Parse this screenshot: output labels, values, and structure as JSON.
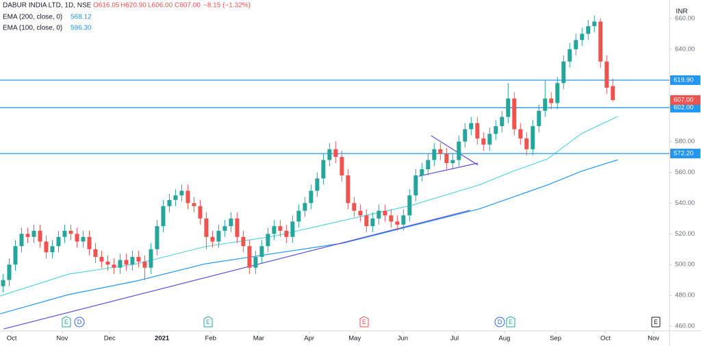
{
  "chart_data": {
    "type": "candlestick",
    "header": {
      "symbol": "DABUR INDIA LTD, 1D, NSE",
      "open": "O616.05",
      "high": "H620.90",
      "low": "L606.00",
      "close": "C607.00",
      "change": "−8.15 (−1.32%)"
    },
    "currency": "INR",
    "up_color": "#26a69a",
    "down_color": "#ef5350",
    "open": [
      486,
      490,
      500,
      512,
      520,
      518,
      522,
      515,
      508,
      512,
      518,
      522,
      520,
      515,
      518,
      510,
      505,
      502,
      500,
      498,
      503,
      500,
      505,
      502,
      498,
      510,
      525,
      538,
      542,
      545,
      548,
      540,
      538,
      530,
      518,
      515,
      522,
      525,
      530,
      518,
      512,
      498,
      505,
      512,
      520,
      525,
      522,
      518,
      528,
      535,
      540,
      548,
      556,
      568,
      575,
      570,
      558,
      540,
      535,
      532,
      525,
      530,
      535,
      532,
      528,
      526,
      532,
      545,
      558,
      562,
      568,
      575,
      572,
      566,
      568,
      580,
      588,
      592,
      582,
      578,
      585,
      590,
      596,
      608,
      588,
      582,
      575,
      590,
      600,
      608,
      605,
      618,
      632,
      640,
      646,
      650,
      655,
      658,
      632,
      616.05
    ],
    "high": [
      494,
      504,
      516,
      524,
      524,
      526,
      526,
      519,
      516,
      522,
      526,
      526,
      524,
      522,
      522,
      514,
      509,
      506,
      504,
      507,
      507,
      509,
      509,
      506,
      514,
      529,
      542,
      546,
      549,
      552,
      552,
      544,
      542,
      534,
      522,
      526,
      529,
      534,
      534,
      522,
      516,
      509,
      516,
      524,
      529,
      529,
      526,
      532,
      539,
      544,
      552,
      560,
      572,
      579,
      580,
      574,
      562,
      544,
      539,
      536,
      534,
      539,
      539,
      536,
      532,
      536,
      549,
      562,
      566,
      572,
      579,
      579,
      576,
      572,
      584,
      592,
      596,
      596,
      586,
      589,
      594,
      600,
      618,
      612,
      592,
      586,
      594,
      604,
      620,
      612,
      622,
      636,
      644,
      650,
      654,
      659,
      662,
      660,
      636,
      620.9
    ],
    "low": [
      482,
      486,
      496,
      508,
      514,
      514,
      511,
      504,
      504,
      508,
      514,
      516,
      511,
      511,
      506,
      501,
      498,
      496,
      494,
      494,
      496,
      496,
      498,
      490,
      494,
      506,
      521,
      534,
      538,
      541,
      536,
      534,
      526,
      510,
      511,
      511,
      518,
      521,
      514,
      508,
      494,
      494,
      501,
      508,
      516,
      518,
      514,
      514,
      524,
      531,
      536,
      544,
      552,
      564,
      566,
      554,
      536,
      531,
      528,
      521,
      521,
      526,
      528,
      524,
      522,
      522,
      528,
      541,
      554,
      558,
      564,
      568,
      562,
      562,
      564,
      576,
      584,
      578,
      574,
      574,
      581,
      586,
      592,
      584,
      578,
      571,
      571,
      586,
      596,
      601,
      601,
      614,
      628,
      636,
      642,
      646,
      651,
      628,
      611,
      606
    ],
    "close": [
      490,
      500,
      512,
      520,
      518,
      522,
      515,
      508,
      512,
      518,
      522,
      520,
      515,
      518,
      510,
      505,
      502,
      500,
      498,
      503,
      500,
      505,
      502,
      498,
      510,
      525,
      538,
      542,
      545,
      548,
      540,
      538,
      530,
      518,
      515,
      522,
      525,
      530,
      518,
      512,
      498,
      505,
      512,
      520,
      525,
      522,
      518,
      528,
      535,
      540,
      548,
      556,
      568,
      575,
      570,
      558,
      540,
      535,
      532,
      525,
      530,
      535,
      532,
      528,
      526,
      532,
      545,
      558,
      562,
      568,
      575,
      572,
      566,
      568,
      580,
      588,
      592,
      582,
      578,
      585,
      590,
      596,
      608,
      588,
      582,
      575,
      590,
      600,
      608,
      605,
      618,
      632,
      640,
      646,
      650,
      655,
      658,
      632,
      615,
      607
    ],
    "series": [
      {
        "name": "EMA (200, close, 0)",
        "value_label": "568.12",
        "color": "#2196f3",
        "x": [
          0,
          11.1,
          22.2,
          33.3,
          44.4,
          55.6,
          66.7,
          77.8,
          88.9,
          94.4,
          100.3
        ],
        "values": [
          468,
          480.5,
          489.4,
          500.5,
          507.2,
          513.9,
          525,
          536.2,
          551.8,
          560.7,
          568.12
        ]
      },
      {
        "name": "EMA (100, close, 0)",
        "value_label": "596.30",
        "color": "#5cd3e3",
        "x": [
          0,
          11.1,
          22.2,
          33.3,
          44.4,
          55.6,
          66.7,
          77.8,
          83.3,
          88.9,
          94.4,
          100.3
        ],
        "values": [
          479.6,
          493.8,
          500.5,
          511.7,
          518.4,
          528.6,
          538.4,
          551.8,
          560.7,
          568.7,
          585.2,
          596.3
        ]
      }
    ],
    "levels": [
      {
        "value": 619.9,
        "label": "619.90"
      },
      {
        "value": 602,
        "label": "602.00"
      },
      {
        "value": 572.2,
        "label": "572.20"
      }
    ],
    "last_price": {
      "value": 607,
      "label": "607.00"
    },
    "trendlines": [
      {
        "x": [
          0.6,
          76.3
        ],
        "values": [
          458.2,
          535.3
        ]
      },
      {
        "x": [
          70,
          77.6
        ],
        "values": [
          583.8,
          564.7
        ]
      },
      {
        "x": [
          68,
          77.6
        ],
        "values": [
          557.5,
          566
        ]
      }
    ],
    "trendline_color": "#5b4fd6",
    "level_color": "#2196f3",
    "xlim": [
      0,
      108.7
    ],
    "ylim": [
      456.9,
      672
    ],
    "yticks": [
      {
        "value": 660,
        "label": "660.00"
      },
      {
        "value": 640,
        "label": "640.00"
      },
      {
        "value": 580,
        "label": "580.00"
      },
      {
        "value": 560,
        "label": "560.00"
      },
      {
        "value": 540,
        "label": "540.00"
      },
      {
        "value": 520,
        "label": "520.00"
      },
      {
        "value": 500,
        "label": "500.00"
      },
      {
        "value": 480,
        "label": "480.00"
      },
      {
        "value": 460,
        "label": "460.00"
      }
    ],
    "xticks": [
      {
        "value": 1.9,
        "label": "Oct"
      },
      {
        "value": 10.1,
        "label": "Nov"
      },
      {
        "value": 17.8,
        "label": "Dec"
      },
      {
        "value": 26.3,
        "label": "2021"
      },
      {
        "value": 34.2,
        "label": "Feb"
      },
      {
        "value": 42,
        "label": "Mar"
      },
      {
        "value": 50.2,
        "label": "Apr"
      },
      {
        "value": 57.6,
        "label": "May"
      },
      {
        "value": 65.4,
        "label": "Jun"
      },
      {
        "value": 73.8,
        "label": "Jul"
      },
      {
        "value": 81.9,
        "label": "Aug"
      },
      {
        "value": 90.2,
        "label": "Sep"
      },
      {
        "value": 98.3,
        "label": "Oct"
      },
      {
        "value": 106.1,
        "label": "Nov"
      }
    ],
    "events": [
      "E",
      "D",
      "E",
      "E",
      "D",
      "E",
      "E"
    ]
  }
}
